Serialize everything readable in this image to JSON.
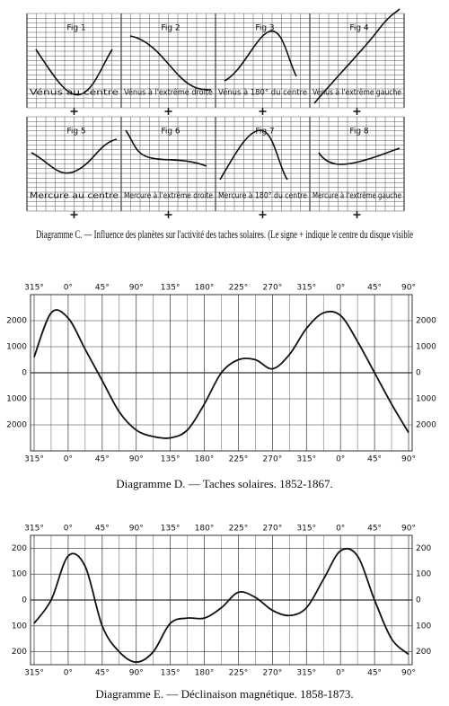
{
  "figure_c": {
    "panels": [
      {
        "fig": "Fig 1",
        "label": "Vénus au centre"
      },
      {
        "fig": "Fig 2",
        "label": "Vénus à l'extrême droite"
      },
      {
        "fig": "Fig 3",
        "label": "Vénus à 180° du centre"
      },
      {
        "fig": "Fig 4",
        "label": "Vénus à l'extrême gauche"
      },
      {
        "fig": "Fig 5",
        "label": "Mercure au centre"
      },
      {
        "fig": "Fig 6",
        "label": "Mercure à l'extrême droite"
      },
      {
        "fig": "Fig 7",
        "label": "Mercure à 180° du centre"
      },
      {
        "fig": "Fig 8",
        "label": "Mercure à l'extrême gauche"
      }
    ],
    "caption": "Diagramme C. — Influence des planètes sur l'activité des taches solaires. (Le signe + indique le centre du disque visible"
  },
  "chart_data": [
    {
      "type": "line",
      "caption": "Diagramme D. — Taches solaires. 1852-1867.",
      "categories": [
        "315°",
        null,
        "0°",
        null,
        "45°",
        null,
        "90°",
        null,
        "135°",
        null,
        "180°",
        null,
        "225°",
        null,
        "270°",
        null,
        "315°",
        null,
        "0°",
        null,
        "45°",
        null,
        "90°"
      ],
      "values": [
        600,
        2300,
        2100,
        900,
        -300,
        -1500,
        -2200,
        -2450,
        -2500,
        -2200,
        -1200,
        0,
        500,
        500,
        150,
        700,
        1700,
        2300,
        2200,
        1200,
        0,
        -1200,
        -2300
      ],
      "color": "#111111",
      "ylim": [
        -3000,
        3000
      ],
      "yticks": [
        {
          "value": 2000,
          "label": "2000"
        },
        {
          "value": 1000,
          "label": "1000"
        },
        0,
        {
          "value": -1000,
          "label": "1000"
        },
        {
          "value": -2000,
          "label": "2000"
        }
      ],
      "grid": true
    },
    {
      "type": "line",
      "caption": "Diagramme E. — Déclinaison magnétique. 1858-1873.",
      "categories": [
        "315°",
        null,
        "0°",
        null,
        "45°",
        null,
        "90°",
        null,
        "135°",
        null,
        "180°",
        null,
        "225°",
        null,
        "270°",
        null,
        "315°",
        null,
        "0°",
        null,
        "45°",
        null,
        "90°"
      ],
      "values": [
        -90,
        0,
        170,
        130,
        -100,
        -200,
        -240,
        -200,
        -90,
        -70,
        -70,
        -30,
        30,
        10,
        -40,
        -60,
        -30,
        80,
        190,
        170,
        0,
        -150,
        -210
      ],
      "color": "#111111",
      "ylim": [
        -250,
        250
      ],
      "yticks": [
        200,
        100,
        0,
        {
          "value": -100,
          "label": "100"
        },
        {
          "value": -200,
          "label": "200"
        }
      ],
      "grid": true
    }
  ]
}
